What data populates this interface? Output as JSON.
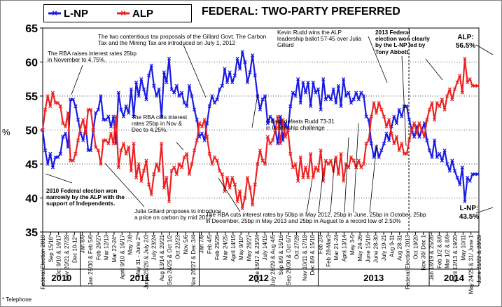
{
  "chart_data": {
    "type": "line",
    "title": "FEDERAL: TWO-PARTY PREFERRED",
    "ylabel": "%",
    "ylim": [
      35,
      65
    ],
    "yticks": [
      "35",
      "40",
      "45",
      "50",
      "55",
      "60",
      "65"
    ],
    "footnote": "* Telephone",
    "legend": {
      "position": "top-left",
      "entries": [
        "L-NP",
        "ALP"
      ]
    },
    "colors": {
      "L-NP": "#1a1ae6",
      "ALP": "#ee2222"
    },
    "x_ticks": [
      "Federal Election 2010",
      "Sep 15/16*",
      "Oct 9/10 & 16/17",
      "Nov 20/21 & 27/28",
      "Dec 10-12*",
      "Jan 8/9",
      "Jan 29/30 & Feb 5/6",
      "Feb 26/27",
      "Mar 12/13",
      "Mar 22-24*",
      "April 9/10 & 16/17",
      "May 7/8",
      "May 31 - June 2*",
      "June 25/26 & July 2/3",
      "July 23/24",
      "Aug 13/14 & 20/21",
      "Sep 24/25 & Oct 1/2",
      "Oct 22/23",
      "Nov 5/6",
      "Nov 26/27 & Dec 3/4",
      "Jan 7/8",
      "Feb 4/5",
      "Feb 25/26",
      "Mar 24/25",
      "April 14/15",
      "May 9/10*",
      "May 26/27",
      "June 16/17 & 23/24",
      "July 14/15",
      "July 28/29 & Aug 4/5",
      "Sep 8/9 & 15/16",
      "Sep 29/30 & Oct 6/7",
      "Oct 27/28",
      "Nov 10/11 & 17/18",
      "Dec 8/9 & 15/16",
      "Feb 2/3",
      "Feb 28-Mar3",
      "Mar 21-24",
      "April 13/14",
      "May 3-5",
      "May 24-26",
      "June 15/16",
      "June 28-30",
      "July 19-21",
      "Aug 9-11",
      "Aug 28-31",
      "Federal Election 2013",
      "Oct 19/20",
      "Nov 30/ Dec 1",
      "Jan 18/19 & 25/26",
      "Feb 1/2 & 8/9",
      "Mar 1/2 & 8/9",
      "April 12/13 & 19/20",
      "May 10/11",
      "May 24/25 & 31/ June 1",
      "June 21/22 & 28/29"
    ],
    "years": [
      "2010",
      "2011",
      "2012",
      "2013",
      "2014"
    ],
    "series": [
      {
        "name": "L-NP",
        "values": [
          50,
          47,
          45,
          46.5,
          44.5,
          46,
          46,
          46.5,
          49,
          49.5,
          47.5,
          54.5,
          54.5,
          53.5,
          51.5,
          49.5,
          48.5,
          50.5,
          47,
          47,
          50,
          52.5,
          53,
          55,
          51.5,
          51.5,
          52,
          50.5,
          52,
          48,
          55.5,
          53,
          52,
          53.5,
          52.5,
          56,
          52,
          57,
          55,
          57.5,
          56,
          54.5,
          58,
          59.5,
          56.5,
          55,
          56,
          52,
          58.5,
          57,
          60.5,
          56,
          55.5,
          56.5,
          55,
          55.5,
          54,
          53.5,
          56.5,
          55,
          53,
          51.5,
          49,
          49.5,
          48.5,
          51,
          53.5,
          55,
          54,
          54.5,
          56,
          56.5,
          59,
          57,
          58.5,
          57,
          58,
          60.5,
          59,
          61.5,
          60,
          57,
          58.5,
          61,
          58,
          55,
          53,
          54.5,
          55,
          51,
          52,
          51.5,
          50,
          48,
          52,
          48.5,
          51,
          50,
          53.5,
          55.5,
          55,
          57.5,
          54,
          57,
          55.5,
          57,
          53.5,
          57,
          55.5,
          56,
          53,
          57.5,
          54.5,
          55,
          54.5,
          56,
          54,
          56.5,
          53.5,
          57.5,
          55,
          55.5,
          54,
          54.5,
          55.5,
          54.5,
          55.5,
          55,
          52,
          51.5,
          48,
          46,
          47.5,
          46,
          47,
          48,
          49.5,
          48.5,
          50.5,
          52,
          51,
          53,
          52,
          53.5,
          53.5,
          51.5,
          50,
          49,
          50.5,
          49,
          50,
          51,
          48.5,
          47,
          46,
          48.5,
          46,
          46.5,
          45.5,
          47,
          45,
          44,
          45.5,
          44,
          43,
          42,
          44.5,
          39.5,
          43,
          42.5,
          43.5,
          43.5,
          43.5
        ]
      },
      {
        "name": "ALP",
        "values": [
          50,
          53,
          55,
          53.5,
          55.5,
          54,
          54,
          53.5,
          51,
          50.5,
          52.5,
          45.5,
          45.5,
          46.5,
          48.5,
          50.5,
          51.5,
          49.5,
          53,
          53,
          50,
          47.5,
          47,
          45,
          48.5,
          48.5,
          48,
          49.5,
          48,
          52,
          44.5,
          47,
          48,
          46.5,
          47.5,
          44,
          48,
          43,
          45,
          42.5,
          44,
          45.5,
          42,
          40.5,
          43.5,
          45,
          44,
          48,
          41.5,
          43,
          39.5,
          44,
          44.5,
          43.5,
          45,
          44.5,
          46,
          46.5,
          43.5,
          45,
          47,
          48.5,
          51,
          50.5,
          51.5,
          49,
          46.5,
          45,
          46,
          45.5,
          44,
          43.5,
          41,
          43,
          41.5,
          43,
          42,
          39.5,
          41,
          38.5,
          40,
          43,
          41.5,
          39,
          42,
          45,
          47,
          45.5,
          45,
          49,
          48,
          48.5,
          50,
          52,
          48,
          51.5,
          49,
          50,
          46.5,
          44.5,
          45,
          42.5,
          46,
          43,
          44.5,
          43,
          46.5,
          43,
          44.5,
          44,
          47,
          42.5,
          45.5,
          45,
          45.5,
          44,
          46,
          43.5,
          46.5,
          42.5,
          45,
          44.5,
          46,
          45.5,
          44.5,
          45.5,
          44.5,
          45,
          48,
          48.5,
          52,
          54,
          52.5,
          54,
          53,
          52,
          50.5,
          51.5,
          49.5,
          48,
          49,
          47,
          48,
          46.5,
          46.5,
          48.5,
          50,
          51,
          49.5,
          51,
          50,
          49,
          51.5,
          53,
          54,
          51.5,
          54,
          53.5,
          54.5,
          53,
          55,
          56,
          54.5,
          56,
          57,
          58,
          55.5,
          60.5,
          57,
          57.5,
          56.5,
          56.5,
          56.5
        ]
      }
    ],
    "annotations": [
      "The RBA raises interest rates 25bp in November to 4.75%.",
      "The two contentious tax proposals of the Gillard Govt. The Carbon Tax and the Mining Tax are introduced on July 1, 2012",
      "Kevin Rudd wins the ALP leadership ballot 57-45 over Julia Gillard",
      "2013 Federal election won clearly by the L-NP led by Tony Abbott.",
      "The RBA cuts interest rates 25bp in Nov & Dec to 4.25%.",
      "Gillard defeats Rudd 73-31 in leadership challenge",
      "2010 Federal election won narrowly by the ALP with the support of Independents.",
      "Julia Gillard proposes to introduce a price on carbon by mid 2012",
      "The RBA cuts interest rates by 50bp in May 2012, 25bp in June, 25bp in October, 25bp in December, 25bp in May 2013 and 25bp in August to a record low of 2.50%"
    ],
    "end_labels": {
      "ALP": {
        "party": "ALP:",
        "value": "56.5%"
      },
      "L-NP": {
        "party": "L-NP:",
        "value": "43.5%"
      }
    }
  }
}
